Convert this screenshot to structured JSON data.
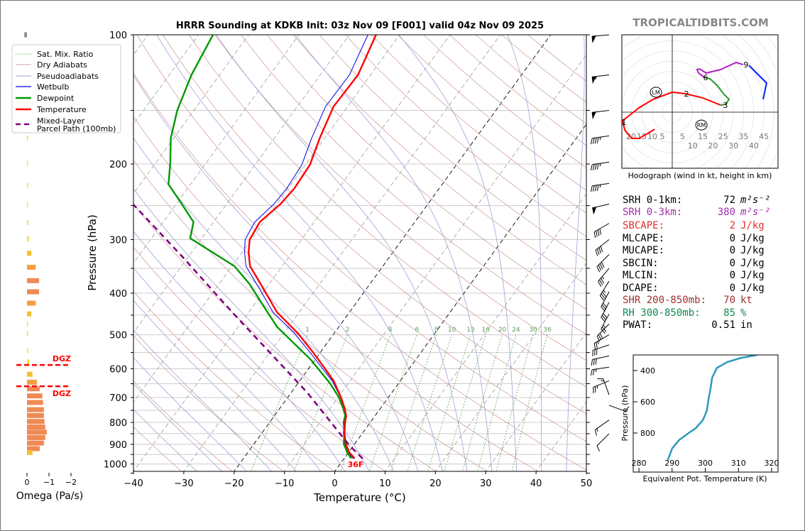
{
  "title": "HRRR Sounding at KDKB Init: 03z Nov 09 [F001] valid 04z Nov 09 2025",
  "watermark": "TROPICALTIDBITS.COM",
  "legend": [
    {
      "label": "Sat. Mix. Ratio",
      "color": "#4a9a4a"
    },
    {
      "label": "Dry Adiabats",
      "color": "#d4a0a0"
    },
    {
      "label": "Pseudoadiabats",
      "color": "#a0a0d8"
    },
    {
      "label": "Wetbulb",
      "color": "#0000dd"
    },
    {
      "label": "Dewpoint",
      "color": "#009900"
    },
    {
      "label": "Temperature",
      "color": "#ff0000"
    },
    {
      "label": "Mixed-Layer",
      "label2": "Parcel Path (100mb)",
      "color": "#800080"
    }
  ],
  "stats": [
    {
      "label": "SRH 0-1km:",
      "value": "72",
      "unit": "m²s⁻²",
      "color": "#000000"
    },
    {
      "label": "SRH 0-3km:",
      "value": "380",
      "unit": "m²s⁻²",
      "color": "#a030a8"
    },
    {
      "label": "SBCAPE:",
      "value": "2",
      "unit": "J/kg",
      "color": "#e03030"
    },
    {
      "label": "MLCAPE:",
      "value": "0",
      "unit": "J/kg",
      "color": "#000000"
    },
    {
      "label": "MUCAPE:",
      "value": "0",
      "unit": "J/kg",
      "color": "#000000"
    },
    {
      "label": "SBCIN:",
      "value": "0",
      "unit": "J/kg",
      "color": "#000000"
    },
    {
      "label": "MLCIN:",
      "value": "0",
      "unit": "J/kg",
      "color": "#000000"
    },
    {
      "label": "DCAPE:",
      "value": "0",
      "unit": "J/kg",
      "color": "#000000"
    },
    {
      "label": "SHR 200-850mb:",
      "value": "70",
      "unit": "kt",
      "color": "#a03030"
    },
    {
      "label": "RH 300-850mb:",
      "value": "85",
      "unit": "%",
      "color": "#108a50"
    },
    {
      "label": "PWAT:",
      "value": "0.51",
      "unit": "in",
      "color": "#000000"
    }
  ],
  "chart_data": [
    {
      "type": "line",
      "name": "skew-t",
      "title": "HRRR Sounding at KDKB Init: 03z Nov 09 [F001] valid 04z Nov 09 2025",
      "xlabel": "Temperature (°C)",
      "ylabel": "Pressure (hPa)",
      "xlim": [
        -40,
        50
      ],
      "ylim": [
        1050,
        100
      ],
      "xticks": [
        -40,
        -30,
        -20,
        -10,
        0,
        10,
        20,
        30,
        40,
        50
      ],
      "xtick_labels": [
        "−40",
        "−30",
        "−20",
        "−10",
        "0",
        "10",
        "20",
        "30",
        "40",
        "50"
      ],
      "yticks": [
        100,
        200,
        300,
        400,
        500,
        600,
        700,
        800,
        900,
        1000
      ],
      "ytick_labels": [
        "100",
        "200",
        "300",
        "400",
        "500",
        "600",
        "700",
        "800",
        "900",
        "1000"
      ],
      "isobars": [
        100,
        150,
        200,
        250,
        300,
        350,
        400,
        450,
        500,
        550,
        600,
        650,
        700,
        750,
        800,
        850,
        900,
        950,
        1000,
        1050
      ],
      "isotherm_step": 10,
      "highlight_isotherms": [
        0,
        -20
      ],
      "dry_adiabats_K": [
        240,
        250,
        260,
        270,
        280,
        290,
        300,
        310,
        320,
        330,
        340,
        350,
        360,
        370,
        380,
        390,
        400,
        410,
        420,
        430,
        440,
        450,
        460,
        470,
        480
      ],
      "moist_adiabats_C_at_1000": [
        -30,
        -25,
        -20,
        -15,
        -10,
        -5,
        0,
        5,
        10,
        15,
        20,
        25,
        30,
        35,
        40,
        45
      ],
      "mixing_ratios": [
        1,
        2,
        4,
        6,
        8,
        10,
        13,
        16,
        20,
        24,
        30,
        36
      ],
      "mixing_ratio_labels": [
        "1",
        "2",
        "4",
        "6",
        "8",
        "10",
        "13",
        "16",
        "20",
        "24",
        "30",
        "36"
      ],
      "series": [
        {
          "name": "Temperature",
          "points": [
            [
              971,
              2.1
            ],
            [
              939,
              0.1
            ],
            [
              897,
              -1.8
            ],
            [
              847,
              -3.6
            ],
            [
              800,
              -5.0
            ],
            [
              773,
              -5.7
            ],
            [
              742,
              -7.1
            ],
            [
              700,
              -9.4
            ],
            [
              641,
              -13.2
            ],
            [
              590,
              -17.6
            ],
            [
              548,
              -21.6
            ],
            [
              497,
              -27.1
            ],
            [
              443,
              -34.4
            ],
            [
              388,
              -40.8
            ],
            [
              346,
              -46.4
            ],
            [
              321,
              -48.7
            ],
            [
              300,
              -50.3
            ],
            [
              273,
              -50.8
            ],
            [
              248,
              -49.3
            ],
            [
              228,
              -48.8
            ],
            [
              201,
              -49.1
            ],
            [
              174,
              -51.0
            ],
            [
              147,
              -52.8
            ],
            [
              124,
              -52.5
            ],
            [
              100,
              -54.7
            ]
          ]
        },
        {
          "name": "Dewpoint",
          "points": [
            [
              971,
              1.4
            ],
            [
              939,
              -0.3
            ],
            [
              897,
              -2.2
            ],
            [
              837,
              -3.9
            ],
            [
              800,
              -5.3
            ],
            [
              770,
              -6.0
            ],
            [
              742,
              -7.4
            ],
            [
              700,
              -9.8
            ],
            [
              649,
              -13.6
            ],
            [
              572,
              -20.8
            ],
            [
              479,
              -32.3
            ],
            [
              443,
              -36.3
            ],
            [
              381,
              -43.9
            ],
            [
              346,
              -49.5
            ],
            [
              298,
              -62.3
            ],
            [
              273,
              -64.0
            ],
            [
              246,
              -69.3
            ],
            [
              223,
              -74.4
            ],
            [
              199,
              -77.1
            ],
            [
              174,
              -80.6
            ],
            [
              150,
              -83.3
            ],
            [
              124,
              -85.6
            ],
            [
              100,
              -87.1
            ]
          ]
        },
        {
          "name": "Wetbulb",
          "points": [
            [
              971,
              1.8
            ],
            [
              939,
              -0.2
            ],
            [
              897,
              -2.0
            ],
            [
              847,
              -3.8
            ],
            [
              800,
              -5.2
            ],
            [
              773,
              -5.9
            ],
            [
              742,
              -7.3
            ],
            [
              700,
              -9.5
            ],
            [
              641,
              -13.5
            ],
            [
              590,
              -18.1
            ],
            [
              548,
              -22.2
            ],
            [
              497,
              -27.8
            ],
            [
              443,
              -35.2
            ],
            [
              388,
              -41.6
            ],
            [
              346,
              -47.2
            ],
            [
              321,
              -49.5
            ],
            [
              300,
              -51.2
            ],
            [
              273,
              -51.8
            ],
            [
              248,
              -50.6
            ],
            [
              228,
              -50.3
            ],
            [
              201,
              -50.7
            ],
            [
              174,
              -52.6
            ],
            [
              147,
              -54.4
            ],
            [
              124,
              -54.2
            ],
            [
              100,
              -56.3
            ]
          ]
        },
        {
          "name": "Mixed-Layer Parcel Path (100mb)",
          "points": [
            [
              971,
              3.7
            ],
            [
              904,
              -0.9
            ],
            [
              682,
              -16.8
            ],
            [
              443,
              -43.3
            ],
            [
              330,
              -61.0
            ],
            [
              248,
              -78.6
            ]
          ]
        }
      ],
      "surface_label": "36F",
      "winds_p_dir_kt": [
        [
          100,
          265,
          50
        ],
        [
          124,
          263,
          55
        ],
        [
          150,
          263,
          50
        ],
        [
          172,
          262,
          45
        ],
        [
          198,
          262,
          45
        ],
        [
          222,
          262,
          45
        ],
        [
          248,
          257,
          50
        ],
        [
          275,
          240,
          40
        ],
        [
          300,
          232,
          40
        ],
        [
          325,
          225,
          40
        ],
        [
          350,
          220,
          35
        ],
        [
          375,
          212,
          35
        ],
        [
          397,
          208,
          30
        ],
        [
          420,
          208,
          30
        ],
        [
          447,
          208,
          25
        ],
        [
          472,
          225,
          30
        ],
        [
          500,
          240,
          25
        ],
        [
          528,
          252,
          30
        ],
        [
          560,
          258,
          30
        ],
        [
          595,
          262,
          25
        ],
        [
          640,
          248,
          25
        ],
        [
          690,
          340,
          15
        ],
        [
          730,
          110,
          10
        ],
        [
          790,
          235,
          15
        ],
        [
          850,
          225,
          10
        ]
      ]
    },
    {
      "type": "line",
      "name": "hodograph",
      "xlabel": "Hodograph (wind in kt, height in km)",
      "ring_step_kt": 5,
      "left_ring_labels": [
        "20",
        "15",
        "10",
        "5"
      ],
      "right_ring_labels": [
        "5",
        "10",
        "15",
        "20",
        "25",
        "30",
        "35",
        "40",
        "45"
      ],
      "segments": [
        {
          "name": "0-3 km",
          "color": "#ff0000",
          "uv": [
            [
              -8.7,
              -8.4
            ],
            [
              -13,
              -11
            ],
            [
              -16.4,
              -12.9
            ],
            [
              -19.9,
              -12.9
            ],
            [
              -23.3,
              -8.7
            ],
            [
              -24.4,
              -4.2
            ],
            [
              -19.9,
              -0.7
            ],
            [
              -16.4,
              2.1
            ],
            [
              -9.4,
              6.3
            ],
            [
              0,
              9.8
            ],
            [
              6.3,
              9.1
            ],
            [
              15,
              7
            ],
            [
              23.7,
              3.5
            ]
          ]
        },
        {
          "name": "3-6 km",
          "color": "#2a9a2a",
          "uv": [
            [
              23.7,
              3.5
            ],
            [
              26.1,
              3.8
            ],
            [
              27.9,
              6.3
            ],
            [
              25.4,
              8.7
            ],
            [
              22,
              13.2
            ],
            [
              18.5,
              16.4
            ],
            [
              15.7,
              17.1
            ]
          ]
        },
        {
          "name": "6-9 km",
          "color": "#b020c0",
          "uv": [
            [
              15.7,
              17.1
            ],
            [
              12.9,
              19.2
            ],
            [
              12.2,
              20.9
            ],
            [
              13.5,
              21.2
            ],
            [
              16.7,
              19.2
            ],
            [
              23.7,
              20.9
            ],
            [
              31.4,
              24.4
            ],
            [
              34.8,
              23.3
            ]
          ]
        },
        {
          "name": "9-12 km",
          "color": "#0020ff",
          "uv": [
            [
              37.6,
              23
            ],
            [
              46.3,
              14.3
            ],
            [
              44.6,
              6.3
            ]
          ]
        }
      ],
      "height_labels": [
        {
          "text": "1",
          "uv": [
            -24.4,
            -4.8
          ]
        },
        {
          "text": "2",
          "uv": [
            6.3,
            9.1
          ]
        },
        {
          "text": "3",
          "uv": [
            25.4,
            3.5
          ]
        },
        {
          "text": "6",
          "uv": [
            15.7,
            17.1
          ]
        },
        {
          "text": "9",
          "uv": [
            35.5,
            23.3
          ]
        }
      ],
      "storm_motion": [
        {
          "text": "LM",
          "uv": [
            -8,
            9.8
          ]
        },
        {
          "text": "RM",
          "uv": [
            14.3,
            -6.3
          ]
        }
      ]
    },
    {
      "type": "line",
      "name": "theta-e profile",
      "xlabel": "Equivalent Pot. Temperature (K)",
      "ylabel": "Pressure (hPa)",
      "xticks": [
        280,
        290,
        300,
        310,
        320
      ],
      "xtick_labels": [
        "280",
        "290",
        "300",
        "310",
        "320"
      ],
      "yticks": [
        400,
        600,
        800
      ],
      "ytick_labels": [
        "400",
        "600",
        "800"
      ],
      "color": "#2b9ab8",
      "points": [
        [
          973,
          288.7
        ],
        [
          899,
          290
        ],
        [
          845,
          292.1
        ],
        [
          800,
          295
        ],
        [
          770,
          297.1
        ],
        [
          717,
          299.3
        ],
        [
          656,
          300.5
        ],
        [
          580,
          301
        ],
        [
          527,
          301.5
        ],
        [
          444,
          302.1
        ],
        [
          383,
          303.5
        ],
        [
          345,
          306.7
        ],
        [
          320,
          310.6
        ],
        [
          300,
          315.6
        ]
      ]
    },
    {
      "type": "bar",
      "name": "omega",
      "xlabel": "Omega (Pa/s)",
      "xticks": [
        0,
        -1,
        -2
      ],
      "xtick_labels": [
        "0",
        "−1",
        "−2"
      ],
      "dgz_label": "DGZ",
      "dgz_pressures": [
        588,
        659
      ],
      "bars_p_omega": [
        [
          100,
          0.12
        ],
        [
          112,
          -0.03
        ],
        [
          126,
          -0.03
        ],
        [
          141,
          -0.03
        ],
        [
          157,
          -0.03
        ],
        [
          174,
          -0.03
        ],
        [
          199,
          -0.04
        ],
        [
          224,
          -0.05
        ],
        [
          249,
          -0.05
        ],
        [
          274,
          -0.06
        ],
        [
          299,
          -0.08
        ],
        [
          323,
          -0.2
        ],
        [
          348,
          -0.4
        ],
        [
          374,
          -0.55
        ],
        [
          397,
          -0.55
        ],
        [
          422,
          -0.4
        ],
        [
          447,
          -0.2
        ],
        [
          471,
          -0.03
        ],
        [
          497,
          -0.03
        ],
        [
          544,
          -0.03
        ],
        [
          578,
          -0.1
        ],
        [
          618,
          -0.25
        ],
        [
          645,
          -0.45
        ],
        [
          668,
          -0.58
        ],
        [
          694,
          -0.7
        ],
        [
          719,
          -0.73
        ],
        [
          747,
          -0.77
        ],
        [
          771,
          -0.77
        ],
        [
          796,
          -0.8
        ],
        [
          820,
          -0.83
        ],
        [
          843,
          -0.9
        ],
        [
          868,
          -0.83
        ],
        [
          894,
          -0.77
        ],
        [
          921,
          -0.58
        ],
        [
          940,
          -0.25
        ]
      ]
    }
  ]
}
